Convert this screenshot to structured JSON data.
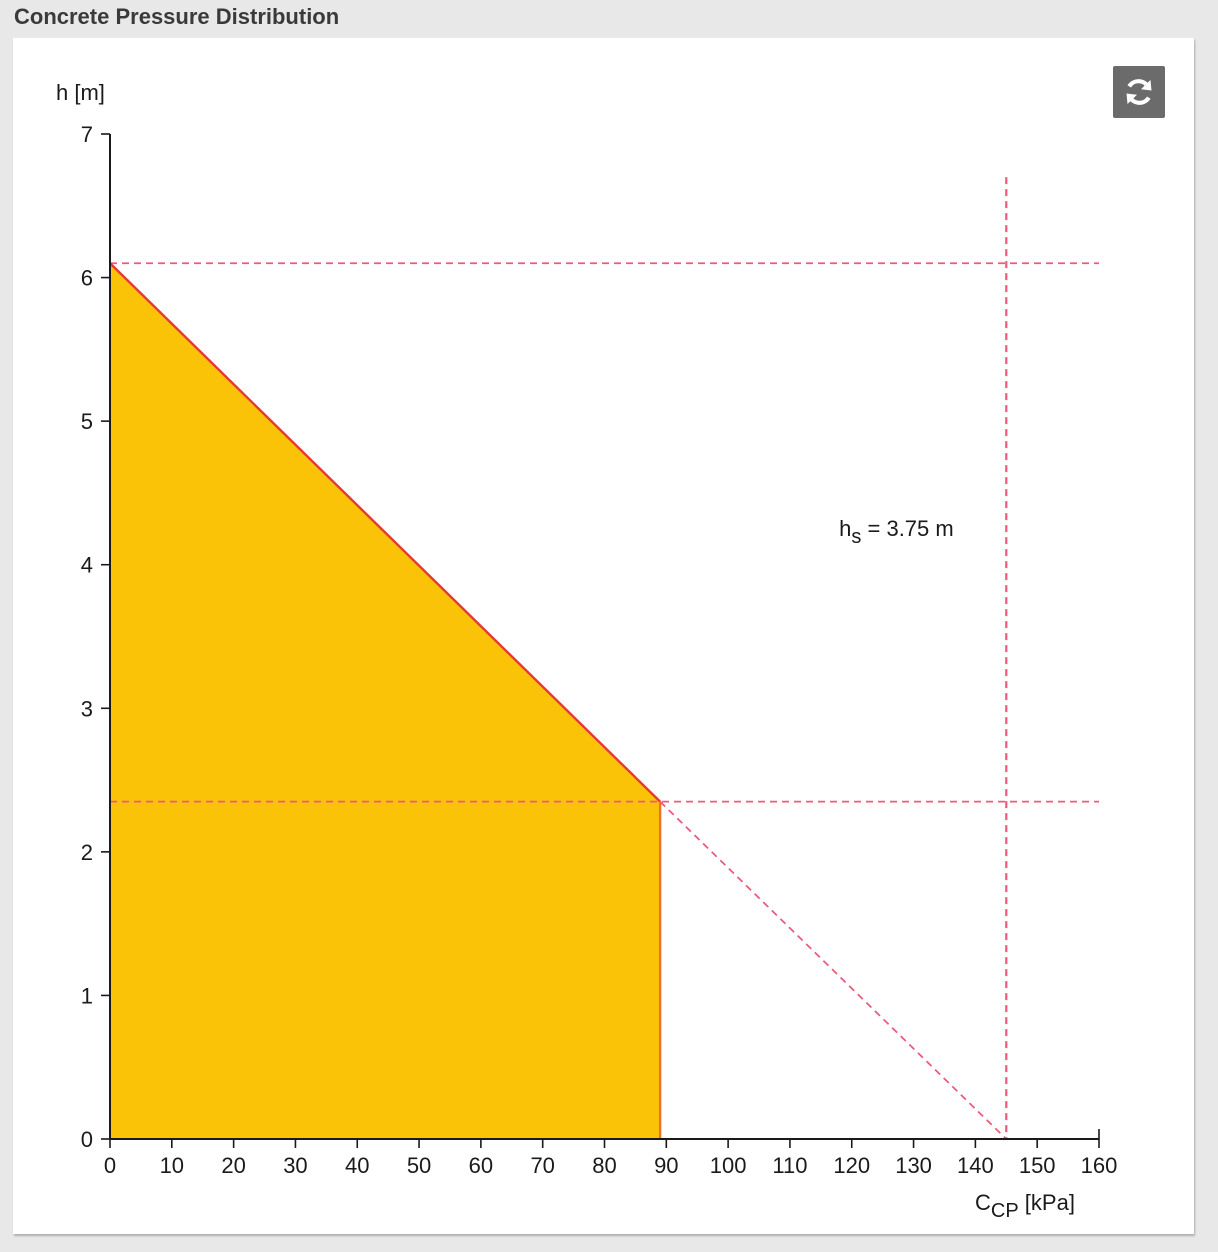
{
  "panel": {
    "title": "Concrete Pressure Distribution"
  },
  "toolbar": {
    "refresh_icon": "refresh-icon"
  },
  "colors": {
    "fill": "#fbc308",
    "line": "#e53935",
    "guide": "#ec5b7a",
    "axis": "#1a1a1a"
  },
  "chart_data": {
    "type": "area",
    "title": "Concrete Pressure Distribution",
    "xlabel_main": "C",
    "xlabel_sub": "CP",
    "xlabel_unit": "[kPa]",
    "ylabel": "h [m]",
    "xlim": [
      0,
      160
    ],
    "ylim": [
      0,
      7
    ],
    "xticks": [
      0,
      10,
      20,
      30,
      40,
      50,
      60,
      70,
      80,
      90,
      100,
      110,
      120,
      130,
      140,
      150,
      160
    ],
    "yticks": [
      0,
      1,
      2,
      3,
      4,
      5,
      6,
      7
    ],
    "grid": false,
    "pressure_profile": {
      "points": [
        {
          "x": 0,
          "y": 6.1
        },
        {
          "x": 89,
          "y": 2.35
        },
        {
          "x": 89,
          "y": 0
        },
        {
          "x": 0,
          "y": 0
        }
      ]
    },
    "hydrostatic_extension": [
      {
        "x": 89,
        "y": 2.35
      },
      {
        "x": 145,
        "y": 0
      }
    ],
    "guides": {
      "h_top": 6.1,
      "h_limit": 2.35,
      "x_hydro": 145,
      "x_vertical_top": 6.7,
      "x_right_end": 160
    },
    "annotation": {
      "label_main": "h",
      "label_sub": "s",
      "label_rest": "= 3.75 m",
      "x": 136.5,
      "y": 4.2
    }
  }
}
